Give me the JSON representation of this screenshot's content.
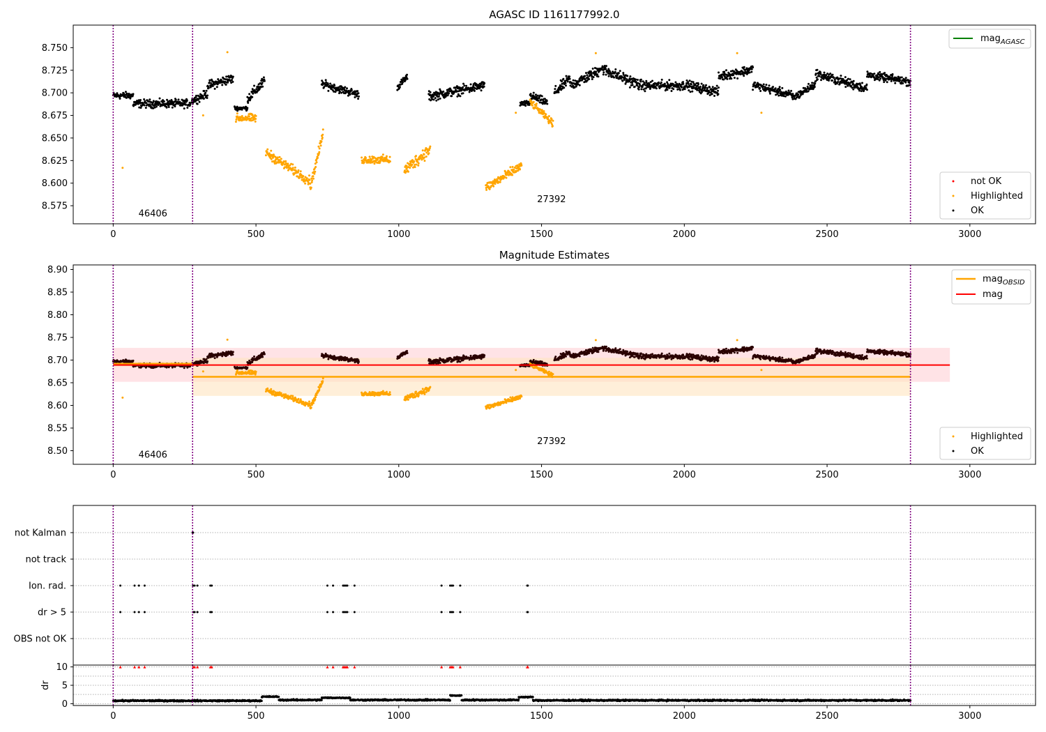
{
  "colors": {
    "ok": "#000000",
    "highlighted": "#ffa500",
    "not_ok": "#ff0000",
    "mag_agasc": "#008000",
    "mag_obsid": "#ffa500",
    "mag": "#ff0000",
    "boundary": "#800080",
    "mag_band": "#ffc0c8",
    "obsid_band": "#ffe4bf",
    "dr_black": "#000000"
  },
  "chart_data": [
    {
      "type": "scatter",
      "title": "AGASC ID 1161177992.0",
      "xlim": [
        -140,
        3230
      ],
      "ylim": [
        8.555,
        8.775
      ],
      "xticks": [
        "0",
        "500",
        "1000",
        "1500",
        "2000",
        "2500",
        "3000"
      ],
      "xtick_values": [
        0,
        500,
        1000,
        1500,
        2000,
        2500,
        3000
      ],
      "yticks": [
        "8.575",
        "8.600",
        "8.625",
        "8.650",
        "8.675",
        "8.700",
        "8.725",
        "8.750"
      ],
      "ytick_values": [
        8.575,
        8.6,
        8.625,
        8.65,
        8.675,
        8.7,
        8.725,
        8.75
      ],
      "obsid_boundaries": [
        0,
        278,
        2792
      ],
      "obsid_labels": [
        {
          "text": "46406",
          "x": 139,
          "y": 8.563
        },
        {
          "text": "27392",
          "x": 1535,
          "y": 8.579
        }
      ],
      "legend_upper": [
        {
          "label": "mag",
          "sub": "AGASC",
          "kind": "line"
        }
      ],
      "legend_lower": [
        {
          "label": "not OK",
          "kind": "point"
        },
        {
          "label": "Highlighted",
          "kind": "point"
        },
        {
          "label": "OK",
          "kind": "point"
        }
      ],
      "legend_placement": [
        "top-right",
        "bottom-right"
      ],
      "series": [
        {
          "name": "OK",
          "segments": [
            [
              0,
              70,
              8.697,
              0.01,
              0
            ],
            [
              70,
              270,
              8.688,
              0.012,
              0
            ],
            [
              275,
              330,
              8.695,
              0.012,
              0.004
            ],
            [
              330,
              420,
              8.712,
              0.014,
              0.004
            ],
            [
              425,
              470,
              8.683,
              0.006,
              0
            ],
            [
              470,
              530,
              8.703,
              0.016,
              0.01
            ],
            [
              730,
              860,
              8.704,
              0.012,
              -0.006
            ],
            [
              995,
              1030,
              8.712,
              0.01,
              0.006
            ],
            [
              1105,
              1300,
              8.702,
              0.014,
              0.006
            ],
            [
              1425,
              1460,
              8.688,
              0.008,
              0
            ],
            [
              1460,
              1520,
              8.693,
              0.012,
              -0.004
            ],
            [
              1545,
              1600,
              8.708,
              0.016,
              0.008
            ],
            [
              1600,
              1700,
              8.716,
              0.016,
              0.008
            ],
            [
              1700,
              1850,
              8.718,
              0.016,
              -0.01
            ],
            [
              1850,
              2000,
              8.708,
              0.014,
              0
            ],
            [
              2000,
              2120,
              8.705,
              0.014,
              -0.004
            ],
            [
              2120,
              2240,
              8.722,
              0.014,
              0.004
            ],
            [
              2240,
              2380,
              8.703,
              0.012,
              -0.006
            ],
            [
              2380,
              2460,
              8.702,
              0.012,
              0.008
            ],
            [
              2460,
              2640,
              8.713,
              0.014,
              -0.008
            ],
            [
              2640,
              2792,
              8.716,
              0.012,
              -0.004
            ]
          ]
        },
        {
          "name": "Highlighted",
          "segments": [
            [
              430,
              500,
              8.672,
              0.012,
              0
            ],
            [
              535,
              690,
              8.618,
              0.014,
              -0.016
            ],
            [
              690,
              735,
              8.625,
              0.014,
              0.03
            ],
            [
              870,
              970,
              8.626,
              0.012,
              0
            ],
            [
              1020,
              1110,
              8.626,
              0.018,
              0.012
            ],
            [
              1305,
              1430,
              8.607,
              0.014,
              0.012
            ],
            [
              1460,
              1540,
              8.678,
              0.01,
              -0.012
            ]
          ]
        },
        {
          "name": "not OK",
          "segments": []
        }
      ],
      "extra_points": [
        {
          "series": "Highlighted",
          "x": 33,
          "y": 8.617
        },
        {
          "series": "Highlighted",
          "x": 400,
          "y": 8.745
        },
        {
          "series": "Highlighted",
          "x": 1690,
          "y": 8.744
        },
        {
          "series": "Highlighted",
          "x": 2185,
          "y": 8.744
        },
        {
          "series": "Highlighted",
          "x": 2270,
          "y": 8.678
        },
        {
          "series": "Highlighted",
          "x": 1410,
          "y": 8.678
        },
        {
          "series": "Highlighted",
          "x": 315,
          "y": 8.675
        }
      ]
    },
    {
      "type": "scatter",
      "title": "Magnitude Estimates",
      "xlim": [
        -140,
        3230
      ],
      "ylim": [
        8.47,
        8.91
      ],
      "xticks": [
        "0",
        "500",
        "1000",
        "1500",
        "2000",
        "2500",
        "3000"
      ],
      "xtick_values": [
        0,
        500,
        1000,
        1500,
        2000,
        2500,
        3000
      ],
      "yticks": [
        "8.50",
        "8.55",
        "8.60",
        "8.65",
        "8.70",
        "8.75",
        "8.80",
        "8.85",
        "8.90"
      ],
      "ytick_values": [
        8.5,
        8.55,
        8.6,
        8.65,
        8.7,
        8.75,
        8.8,
        8.85,
        8.9
      ],
      "obsid_boundaries": [
        0,
        278,
        2792
      ],
      "obsid_labels": [
        {
          "text": "46406",
          "x": 139,
          "y": 8.485
        },
        {
          "text": "27392",
          "x": 1535,
          "y": 8.515
        }
      ],
      "mag": {
        "value": 8.689,
        "low": 8.652,
        "high": 8.727,
        "x": [
          0,
          2930
        ]
      },
      "mag_obsid": [
        {
          "value": 8.692,
          "low": 8.685,
          "high": 8.699,
          "x": [
            0,
            278
          ]
        },
        {
          "value": 8.663,
          "low": 8.621,
          "high": 8.705,
          "x": [
            278,
            2792
          ]
        }
      ],
      "legend_upper": [
        {
          "label": "mag",
          "sub": "OBSID",
          "kind": "line"
        },
        {
          "label": "mag",
          "sub": "",
          "kind": "line"
        }
      ],
      "legend_lower": [
        {
          "label": "Highlighted",
          "kind": "point"
        },
        {
          "label": "OK",
          "kind": "point"
        }
      ],
      "legend_placement": [
        "top-right",
        "bottom-right"
      ]
    },
    {
      "type": "scatter",
      "title": "",
      "xlim": [
        -140,
        3230
      ],
      "categories": [
        "not Kalman",
        "not track",
        "Ion. rad.",
        "dr > 5",
        "OBS not OK"
      ],
      "flag_x": [
        {
          "flag": "not Kalman",
          "x": [
            278,
            279,
            280
          ]
        },
        {
          "flag": "Ion. rad.",
          "x": [
            25,
            75,
            90,
            110,
            280,
            285,
            295,
            340,
            345,
            750,
            770,
            805,
            810,
            815,
            820,
            845,
            1150,
            1180,
            1185,
            1190,
            1215,
            1450,
            1452
          ]
        },
        {
          "flag": "dr > 5",
          "x": [
            25,
            75,
            90,
            110,
            280,
            285,
            295,
            340,
            345,
            750,
            770,
            805,
            810,
            815,
            820,
            845,
            1150,
            1180,
            1185,
            1190,
            1215,
            1450,
            1452
          ]
        }
      ],
      "obsid_boundaries": [
        0,
        278,
        2792
      ]
    },
    {
      "type": "scatter",
      "title": "",
      "xlim": [
        -140,
        3230
      ],
      "ylim": [
        -0.5,
        10.5
      ],
      "ylabel": "dr",
      "xticks": [
        "0",
        "500",
        "1000",
        "1500",
        "2000",
        "2500",
        "3000"
      ],
      "xtick_values": [
        0,
        500,
        1000,
        1500,
        2000,
        2500,
        3000
      ],
      "yticks": [
        "0",
        "5",
        "10"
      ],
      "ytick_values": [
        0,
        5,
        10
      ],
      "dr_segments": [
        [
          0,
          520,
          0.8,
          0.5
        ],
        [
          520,
          580,
          1.9,
          0.4
        ],
        [
          580,
          730,
          1.0,
          0.5
        ],
        [
          730,
          830,
          1.6,
          0.4
        ],
        [
          830,
          1180,
          1.0,
          0.5
        ],
        [
          1180,
          1220,
          2.2,
          0.3
        ],
        [
          1220,
          1420,
          1.0,
          0.5
        ],
        [
          1420,
          1470,
          1.8,
          0.4
        ],
        [
          1470,
          2792,
          0.9,
          0.5
        ]
      ],
      "dr_capped_x": [
        25,
        75,
        90,
        110,
        280,
        285,
        295,
        340,
        345,
        750,
        770,
        805,
        810,
        815,
        820,
        845,
        1150,
        1180,
        1185,
        1190,
        1215,
        1450,
        1452
      ],
      "obsid_boundaries": [
        0,
        278,
        2792
      ]
    }
  ]
}
